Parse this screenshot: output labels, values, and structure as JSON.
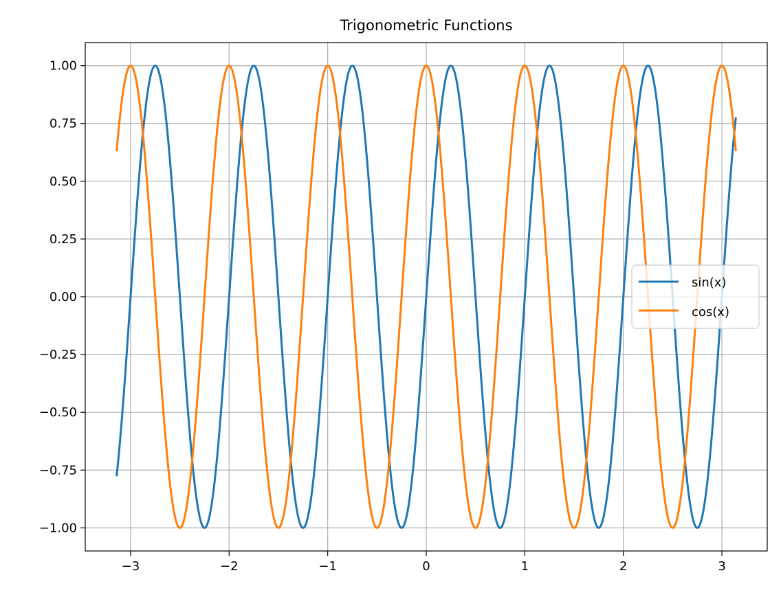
{
  "chart_data": {
    "type": "line",
    "title": "Trigonometric Functions",
    "xlabel": "",
    "ylabel": "",
    "x_range": [
      -3.14159,
      3.14159
    ],
    "xlim": [
      -3.46,
      3.46
    ],
    "ylim": [
      -1.1,
      1.1
    ],
    "xticks": [
      -3,
      -2,
      -1,
      0,
      1,
      2,
      3
    ],
    "xtick_labels": [
      "−3",
      "−2",
      "−1",
      "0",
      "1",
      "2",
      "3"
    ],
    "yticks": [
      1.0,
      0.75,
      0.5,
      0.25,
      0.0,
      -0.25,
      -0.5,
      -0.75,
      -1.0
    ],
    "ytick_labels": [
      "1.00",
      "0.75",
      "0.50",
      "0.25",
      "0.00",
      "−0.25",
      "−0.50",
      "−0.75",
      "−1.00"
    ],
    "grid": true,
    "legend_position": "center-right",
    "series": [
      {
        "name": "sin(x)",
        "function": "sin",
        "frequency_cycles_per_unit": 1,
        "color": "#1f77b4"
      },
      {
        "name": "cos(x)",
        "function": "cos",
        "frequency_cycles_per_unit": 1,
        "color": "#ff7f0e"
      }
    ]
  }
}
